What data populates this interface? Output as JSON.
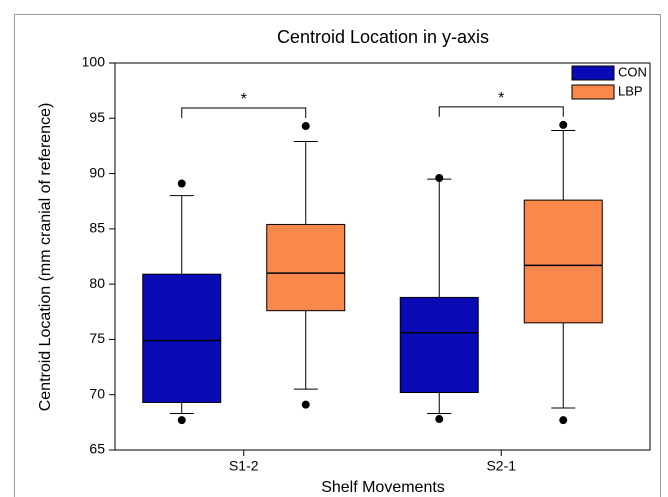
{
  "chart_data": {
    "type": "box",
    "title": "Centroid Location in y-axis",
    "x_label": "Shelf Movements",
    "y_label": "Centroid Location (mm cranial of reference)",
    "categories": [
      "S1-2",
      "S2-1"
    ],
    "series": [
      {
        "name": "CON",
        "color": "#0a0ab4",
        "values": [
          {
            "min": 68.3,
            "q1": 69.3,
            "median": 74.9,
            "q3": 80.9,
            "max": 88.0,
            "outliers": [
              89.1,
              67.7
            ]
          },
          {
            "min": 68.3,
            "q1": 70.2,
            "median": 75.6,
            "q3": 78.8,
            "max": 89.5,
            "outliers": [
              89.6,
              67.8
            ]
          }
        ]
      },
      {
        "name": "LBP",
        "color": "#f9884a",
        "values": [
          {
            "min": 70.5,
            "q1": 77.6,
            "median": 81.0,
            "q3": 85.4,
            "max": 92.9,
            "outliers": [
              94.3,
              69.1
            ]
          },
          {
            "min": 68.8,
            "q1": 76.5,
            "median": 81.7,
            "q3": 87.6,
            "max": 93.9,
            "outliers": [
              94.4,
              67.7
            ]
          }
        ]
      }
    ],
    "significance_labels": [
      "*",
      "*"
    ],
    "ylim": [
      65,
      100
    ],
    "yticks": [
      65,
      70,
      75,
      80,
      85,
      90,
      95,
      100
    ],
    "legend": "top-right"
  }
}
